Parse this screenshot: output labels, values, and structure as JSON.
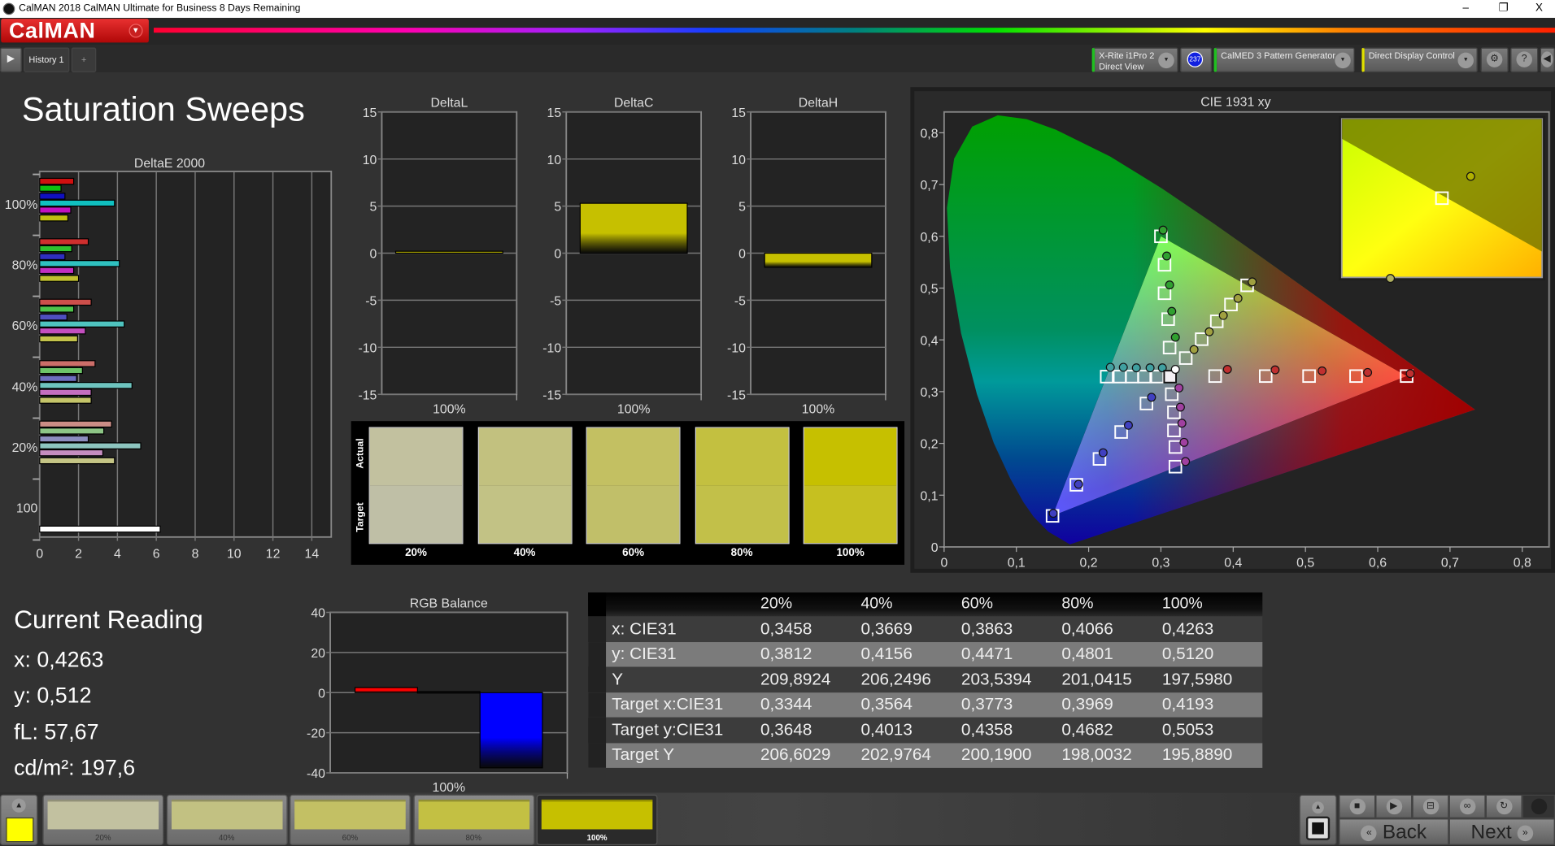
{
  "window": {
    "title": "CalMAN 2018 CalMAN Ultimate for Business 8 Days Remaining",
    "minimize": "–",
    "restore": "❐",
    "close": "X"
  },
  "logo": {
    "text": "CalMAN",
    "dropdown": "▾"
  },
  "toolbar": {
    "history_tab": "History 1",
    "add_tab": "+",
    "play": "▶",
    "meter": {
      "line1": "X-Rite i1Pro 2",
      "line2": "Direct View",
      "badge": "237",
      "accent": "#20c020"
    },
    "pattern_generator": {
      "label": "CalMED 3 Pattern Generator",
      "accent": "#20c020"
    },
    "display_control": {
      "label": "Direct Display Control",
      "accent": "#e0e000"
    },
    "settings": "⚙",
    "help": "?",
    "collapse": "◀"
  },
  "main": {
    "title": "Saturation Sweeps",
    "swatches": {
      "actual_label": "Actual",
      "target_label": "Target",
      "items": [
        {
          "label": "20%",
          "actual": "#c2c19f",
          "target": "#bfbfa6"
        },
        {
          "label": "40%",
          "actual": "#c2c17f",
          "target": "#c2c285"
        },
        {
          "label": "60%",
          "actual": "#c3c062",
          "target": "#c1bf69"
        },
        {
          "label": "80%",
          "actual": "#c3c040",
          "target": "#c2c049"
        },
        {
          "label": "100%",
          "actual": "#c6c000",
          "target": "#c6c020"
        }
      ]
    },
    "current_reading": {
      "title": "Current Reading",
      "x": "x: 0,4263",
      "y": "y: 0,512",
      "fl": "fL: 57,67",
      "cdm2": "cd/m²: 197,6"
    },
    "table": {
      "columns": [
        "",
        "20%",
        "40%",
        "60%",
        "80%",
        "100%"
      ],
      "rows": [
        {
          "label": "x: CIE31",
          "values": [
            "0,3458",
            "0,3669",
            "0,3863",
            "0,4066",
            "0,4263"
          ]
        },
        {
          "label": "y: CIE31",
          "values": [
            "0,3812",
            "0,4156",
            "0,4471",
            "0,4801",
            "0,5120"
          ]
        },
        {
          "label": "Y",
          "values": [
            "209,8924",
            "206,2496",
            "203,5394",
            "201,0415",
            "197,5980"
          ]
        },
        {
          "label": "Target x:CIE31",
          "values": [
            "0,3344",
            "0,3564",
            "0,3773",
            "0,3969",
            "0,4193"
          ]
        },
        {
          "label": "Target y:CIE31",
          "values": [
            "0,3648",
            "0,4013",
            "0,4358",
            "0,4682",
            "0,5053"
          ]
        },
        {
          "label": "Target Y",
          "values": [
            "206,6029",
            "202,9764",
            "200,1900",
            "198,0032",
            "195,8890"
          ]
        }
      ]
    }
  },
  "bottom": {
    "current_color": "#ffff00",
    "patches": [
      {
        "label": "20%",
        "color": "#c2c1a0"
      },
      {
        "label": "40%",
        "color": "#c2c182"
      },
      {
        "label": "60%",
        "color": "#c3c064"
      },
      {
        "label": "80%",
        "color": "#c3c043"
      },
      {
        "label": "100%",
        "color": "#c6c000",
        "selected": true
      }
    ],
    "back": "Back",
    "next": "Next",
    "back_icon": "«",
    "next_icon": "»"
  },
  "chart_data": [
    {
      "id": "deltae",
      "type": "bar",
      "orientation": "horizontal",
      "title": "DeltaE 2000",
      "xlim": [
        0,
        15
      ],
      "xticks": [
        0,
        2,
        4,
        6,
        8,
        10,
        12,
        14
      ],
      "grid": true,
      "series_colors": [
        "#d01010",
        "#10c010",
        "#1010c0",
        "#10c0c0",
        "#c010c0",
        "#c0c010"
      ],
      "groups": [
        {
          "label": "100%",
          "values": [
            1.75,
            1.1,
            1.3,
            3.85,
            1.6,
            1.45
          ]
        },
        {
          "label": "80%",
          "values": [
            2.5,
            1.65,
            1.3,
            4.1,
            1.75,
            2.0
          ]
        },
        {
          "label": "60%",
          "values": [
            2.65,
            1.75,
            1.4,
            4.35,
            2.35,
            1.95
          ]
        },
        {
          "label": "40%",
          "values": [
            2.85,
            2.2,
            1.9,
            4.75,
            2.65,
            2.65
          ]
        },
        {
          "label": "20%",
          "values": [
            3.7,
            3.3,
            2.5,
            5.2,
            3.25,
            3.85
          ]
        },
        {
          "label": "100",
          "values": [
            6.2
          ],
          "colors": [
            "#ffffff"
          ]
        }
      ]
    },
    {
      "id": "deltal",
      "type": "bar",
      "title": "DeltaL",
      "categories": [
        "100%"
      ],
      "values": [
        0.2
      ],
      "ylim": [
        -15,
        15
      ],
      "yticks": [
        15,
        10,
        5,
        0,
        -5,
        -10,
        -15
      ],
      "color": "#c6c000"
    },
    {
      "id": "deltac",
      "type": "bar",
      "title": "DeltaC",
      "categories": [
        "100%"
      ],
      "values": [
        5.3
      ],
      "ylim": [
        -15,
        15
      ],
      "yticks": [
        15,
        10,
        5,
        0,
        -5,
        -10,
        -15
      ],
      "color": "#c6c000"
    },
    {
      "id": "deltah",
      "type": "bar",
      "title": "DeltaH",
      "categories": [
        "100%"
      ],
      "values": [
        -1.5
      ],
      "ylim": [
        -15,
        15
      ],
      "yticks": [
        15,
        10,
        5,
        0,
        -5,
        -10,
        -15
      ],
      "color": "#c6c000"
    },
    {
      "id": "rgb",
      "type": "bar",
      "title": "RGB Balance",
      "categories": [
        "100%"
      ],
      "series": [
        {
          "values": [
            2.5
          ],
          "color": "#ff0000"
        },
        {
          "values": [
            0.5
          ],
          "color": "#101010"
        },
        {
          "values": [
            -37.5
          ],
          "color": "#0000ff"
        }
      ],
      "ylim": [
        -40,
        40
      ],
      "yticks": [
        40,
        20,
        0,
        -20,
        -40
      ]
    },
    {
      "id": "cie",
      "type": "scatter",
      "title": "CIE 1931 xy",
      "xlim": [
        0,
        0.85
      ],
      "ylim": [
        0,
        0.84
      ],
      "xticks": [
        "0",
        "0,1",
        "0,2",
        "0,3",
        "0,4",
        "0,5",
        "0,6",
        "0,7",
        "0,8"
      ],
      "yticks": [
        "0",
        "0,1",
        "0,2",
        "0,3",
        "0,4",
        "0,5",
        "0,6",
        "0,7",
        "0,8"
      ],
      "gamut": {
        "red": [
          0.64,
          0.33
        ],
        "green": [
          0.3,
          0.6
        ],
        "blue": [
          0.15,
          0.06
        ]
      },
      "white": {
        "target": [
          0.3127,
          0.329
        ],
        "measured": [
          0.32,
          0.343
        ]
      },
      "sweeps": [
        {
          "color": "#c03030",
          "targets": [
            [
              0.375,
              0.33
            ],
            [
              0.445,
              0.33
            ],
            [
              0.505,
              0.33
            ],
            [
              0.57,
              0.33
            ],
            [
              0.64,
              0.33
            ]
          ],
          "measured": [
            [
              0.392,
              0.343
            ],
            [
              0.458,
              0.342
            ],
            [
              0.523,
              0.34
            ],
            [
              0.586,
              0.337
            ],
            [
              0.645,
              0.335
            ]
          ]
        },
        {
          "color": "#30a030",
          "targets": [
            [
              0.312,
              0.385
            ],
            [
              0.31,
              0.44
            ],
            [
              0.305,
              0.49
            ],
            [
              0.305,
              0.545
            ],
            [
              0.3,
              0.6
            ]
          ],
          "measured": [
            [
              0.32,
              0.405
            ],
            [
              0.315,
              0.455
            ],
            [
              0.312,
              0.506
            ],
            [
              0.308,
              0.562
            ],
            [
              0.303,
              0.612
            ]
          ]
        },
        {
          "color": "#4040c0",
          "targets": [
            [
              0.28,
              0.277
            ],
            [
              0.245,
              0.222
            ],
            [
              0.215,
              0.17
            ],
            [
              0.183,
              0.12
            ],
            [
              0.15,
              0.06
            ]
          ],
          "measured": [
            [
              0.287,
              0.289
            ],
            [
              0.255,
              0.235
            ],
            [
              0.22,
              0.182
            ],
            [
              0.186,
              0.121
            ],
            [
              0.151,
              0.065
            ]
          ]
        },
        {
          "color": "#40a0a0",
          "targets": [
            [
              0.295,
              0.329
            ],
            [
              0.277,
              0.329
            ],
            [
              0.26,
              0.329
            ],
            [
              0.243,
              0.329
            ],
            [
              0.225,
              0.329
            ]
          ],
          "measured": [
            [
              0.302,
              0.346
            ],
            [
              0.285,
              0.346
            ],
            [
              0.266,
              0.346
            ],
            [
              0.248,
              0.347
            ],
            [
              0.23,
              0.347
            ]
          ]
        },
        {
          "color": "#a040a0",
          "targets": [
            [
              0.315,
              0.295
            ],
            [
              0.318,
              0.26
            ],
            [
              0.318,
              0.225
            ],
            [
              0.32,
              0.193
            ],
            [
              0.32,
              0.155
            ]
          ],
          "measured": [
            [
              0.325,
              0.307
            ],
            [
              0.327,
              0.27
            ],
            [
              0.329,
              0.239
            ],
            [
              0.332,
              0.202
            ],
            [
              0.334,
              0.165
            ]
          ]
        },
        {
          "color": "#a0a040",
          "targets": [
            [
              0.3344,
              0.3648
            ],
            [
              0.3564,
              0.4013
            ],
            [
              0.3773,
              0.4358
            ],
            [
              0.3969,
              0.4682
            ],
            [
              0.4193,
              0.5053
            ]
          ],
          "measured": [
            [
              0.3458,
              0.3812
            ],
            [
              0.3669,
              0.4156
            ],
            [
              0.3863,
              0.4471
            ],
            [
              0.4066,
              0.4801
            ],
            [
              0.4263,
              0.512
            ]
          ]
        }
      ]
    }
  ]
}
